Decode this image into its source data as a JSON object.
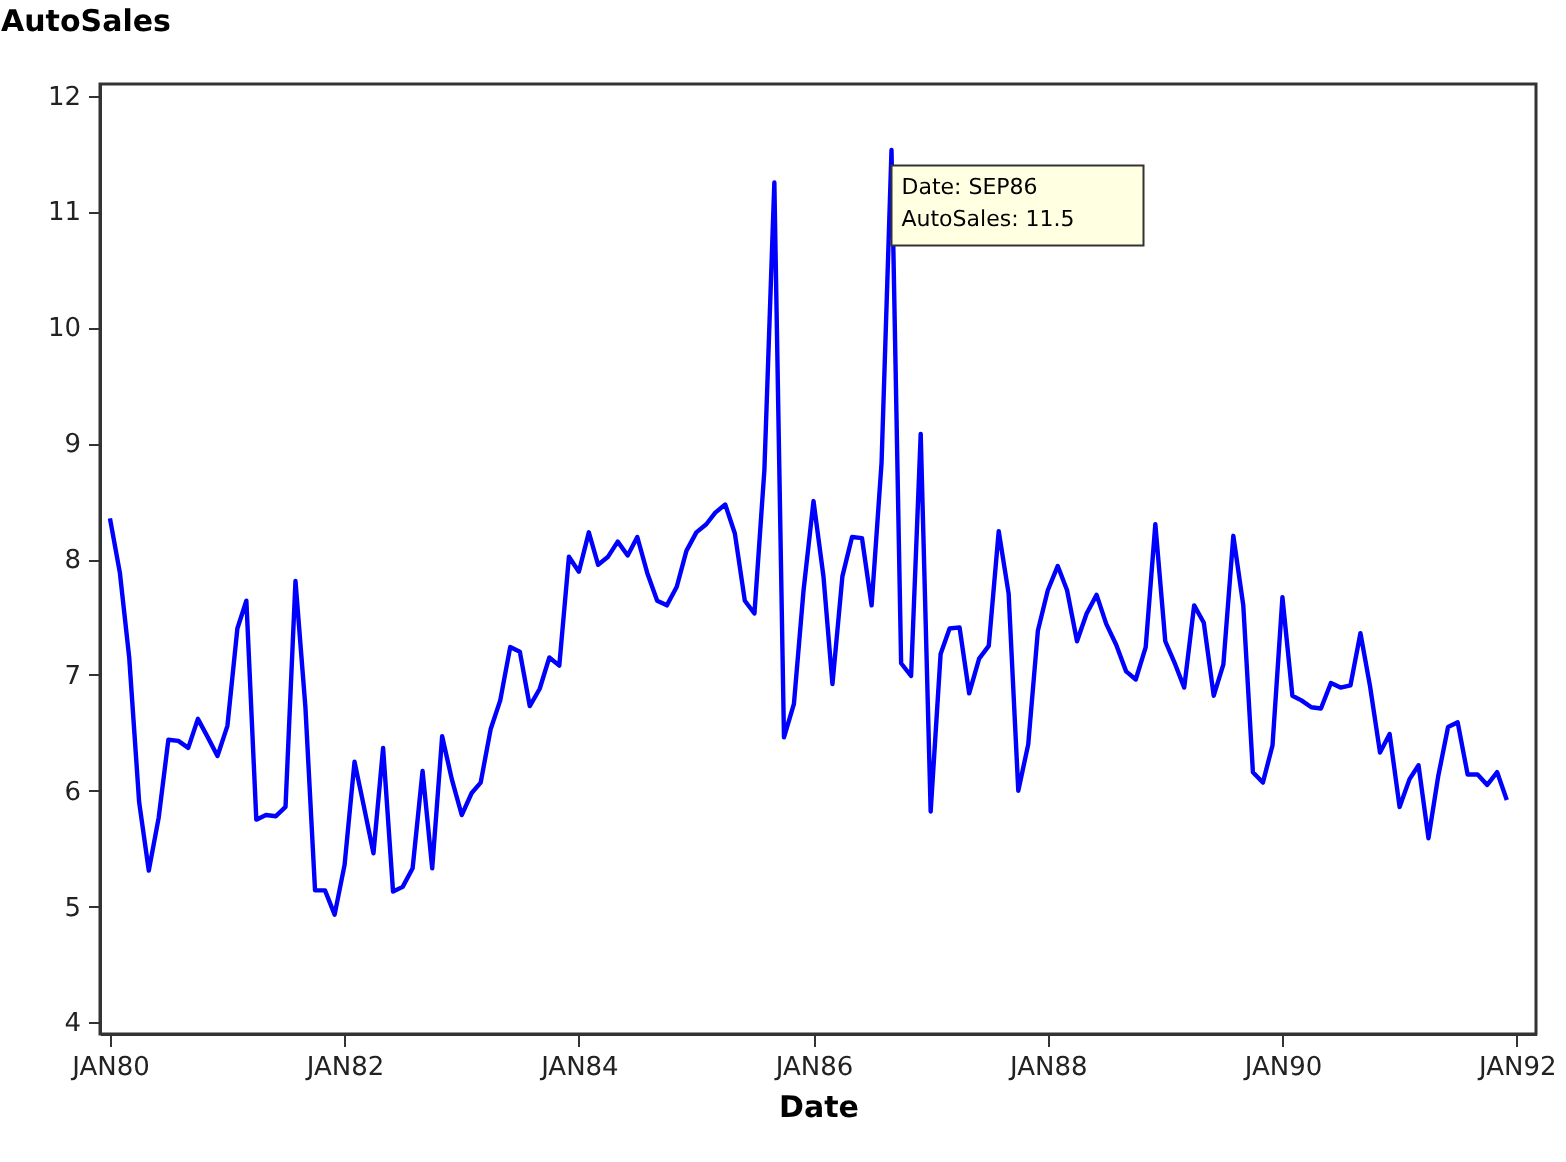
{
  "chart_data": {
    "type": "line",
    "xlabel": "Date",
    "ylabel": "AutoSales",
    "x": [
      "1980-01",
      "1980-02",
      "1980-03",
      "1980-04",
      "1980-05",
      "1980-06",
      "1980-07",
      "1980-08",
      "1980-09",
      "1980-10",
      "1980-11",
      "1980-12",
      "1981-01",
      "1981-02",
      "1981-03",
      "1981-04",
      "1981-05",
      "1981-06",
      "1981-07",
      "1981-08",
      "1981-09",
      "1981-10",
      "1981-11",
      "1981-12",
      "1982-01",
      "1982-02",
      "1982-03",
      "1982-04",
      "1982-05",
      "1982-06",
      "1982-07",
      "1982-08",
      "1982-09",
      "1982-10",
      "1982-11",
      "1982-12",
      "1983-01",
      "1983-02",
      "1983-03",
      "1983-04",
      "1983-05",
      "1983-06",
      "1983-07",
      "1983-08",
      "1983-09",
      "1983-10",
      "1983-11",
      "1983-12",
      "1984-01",
      "1984-02",
      "1984-03",
      "1984-04",
      "1984-05",
      "1984-06",
      "1984-07",
      "1984-08",
      "1984-09",
      "1984-10",
      "1984-11",
      "1984-12",
      "1985-01",
      "1985-02",
      "1985-03",
      "1985-04",
      "1985-05",
      "1985-06",
      "1985-07",
      "1985-08",
      "1985-09",
      "1985-10",
      "1985-11",
      "1985-12",
      "1986-01",
      "1986-02",
      "1986-03",
      "1986-04",
      "1986-05",
      "1986-06",
      "1986-07",
      "1986-08",
      "1986-09",
      "1986-10",
      "1986-11",
      "1986-12",
      "1987-01",
      "1987-02",
      "1987-03",
      "1987-04",
      "1987-05",
      "1987-06",
      "1987-07",
      "1987-08",
      "1987-09",
      "1987-10",
      "1987-11",
      "1987-12",
      "1988-01",
      "1988-02",
      "1988-03",
      "1988-04",
      "1988-05",
      "1988-06",
      "1988-07",
      "1988-08",
      "1988-09",
      "1988-10",
      "1988-11",
      "1988-12",
      "1989-01",
      "1989-02",
      "1989-03",
      "1989-04",
      "1989-05",
      "1989-06",
      "1989-07",
      "1989-08",
      "1989-09",
      "1989-10",
      "1989-11",
      "1989-12",
      "1990-01",
      "1990-02",
      "1990-03",
      "1990-04",
      "1990-05",
      "1990-06",
      "1990-07",
      "1990-08",
      "1990-09",
      "1990-10",
      "1990-11",
      "1990-12",
      "1991-01",
      "1991-02",
      "1991-03",
      "1991-04",
      "1991-05",
      "1991-06",
      "1991-07",
      "1991-08",
      "1991-09",
      "1991-10",
      "1991-11",
      "1991-12"
    ],
    "series": [
      {
        "color": "#0000ff",
        "values": [
          8.35,
          7.88,
          7.15,
          5.9,
          5.31,
          5.77,
          6.44,
          6.43,
          6.37,
          6.62,
          6.46,
          6.3,
          6.56,
          7.4,
          7.64,
          5.75,
          5.79,
          5.78,
          5.86,
          7.81,
          6.72,
          5.14,
          5.14,
          4.93,
          5.36,
          6.25,
          5.88,
          5.46,
          6.37,
          5.13,
          5.17,
          5.33,
          6.17,
          5.33,
          6.47,
          6.1,
          5.79,
          5.98,
          6.07,
          6.53,
          6.78,
          7.24,
          7.2,
          6.73,
          6.88,
          7.15,
          7.08,
          8.02,
          7.89,
          8.23,
          7.95,
          8.02,
          8.15,
          8.03,
          8.19,
          7.88,
          7.64,
          7.6,
          7.76,
          8.07,
          8.23,
          8.3,
          8.4,
          8.47,
          8.22,
          7.64,
          7.53,
          8.77,
          11.25,
          6.46,
          6.75,
          7.73,
          8.5,
          7.85,
          6.92,
          7.85,
          8.19,
          8.18,
          7.6,
          8.83,
          11.53,
          7.1,
          6.99,
          9.08,
          5.82,
          7.18,
          7.4,
          7.41,
          6.84,
          7.14,
          7.25,
          8.24,
          7.7,
          6.0,
          6.4,
          7.38,
          7.73,
          7.94,
          7.73,
          7.29,
          7.53,
          7.69,
          7.44,
          7.26,
          7.03,
          6.96,
          7.24,
          8.3,
          7.29,
          7.09,
          6.89,
          7.6,
          7.45,
          6.82,
          7.09,
          8.2,
          7.6,
          6.16,
          6.07,
          6.39,
          7.67,
          6.82,
          6.78,
          6.72,
          6.71,
          6.93,
          6.89,
          6.91,
          7.36,
          6.9,
          6.33,
          6.49,
          5.86,
          6.1,
          6.22,
          5.59,
          6.12,
          6.55,
          6.59,
          6.14,
          6.14,
          6.05,
          6.16,
          5.92
        ]
      }
    ],
    "xlim": [
      "1979-12",
      "1992-03"
    ],
    "xticks": [
      {
        "value": "1980-01",
        "label": "JAN80"
      },
      {
        "value": "1982-01",
        "label": "JAN82"
      },
      {
        "value": "1984-01",
        "label": "JAN84"
      },
      {
        "value": "1986-01",
        "label": "JAN86"
      },
      {
        "value": "1988-01",
        "label": "JAN88"
      },
      {
        "value": "1990-01",
        "label": "JAN90"
      },
      {
        "value": "1992-01",
        "label": "JAN92"
      }
    ],
    "ylim": [
      3.9,
      12.1
    ],
    "yticks": [
      4,
      5,
      6,
      7,
      8,
      9,
      10,
      11,
      12
    ],
    "grid": false,
    "marker": "none",
    "line_style": "solid",
    "annotations": [
      {
        "text": "Date: SEP86\nAutoSales: 11.5",
        "x": "1986-09",
        "y": 11.5
      }
    ]
  }
}
